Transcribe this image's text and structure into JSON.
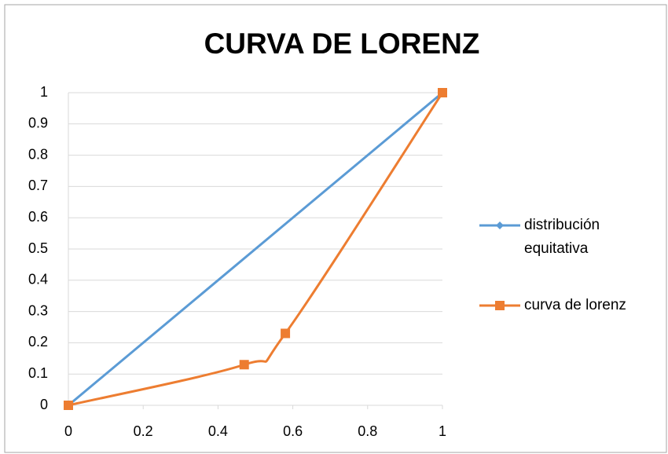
{
  "chart_data": {
    "type": "line",
    "title": "CURVA DE LORENZ",
    "series": [
      {
        "name": "distribución equitativa",
        "color": "#5b9bd5",
        "marker": "diamond",
        "x": [
          0,
          1
        ],
        "values": [
          0,
          1
        ]
      },
      {
        "name": "curva de lorenz",
        "color": "#ed7d31",
        "marker": "square",
        "x": [
          0,
          0.47,
          0.58,
          1
        ],
        "values": [
          0,
          0.13,
          0.23,
          1
        ]
      }
    ],
    "xlim": [
      0,
      1
    ],
    "xticks": [
      0,
      0.2,
      0.4,
      0.6,
      0.8,
      1
    ],
    "ylim": [
      0,
      1
    ],
    "yticks": [
      0,
      0.1,
      0.2,
      0.3,
      0.4,
      0.5,
      0.6,
      0.7,
      0.8,
      0.9,
      1
    ],
    "grid": true,
    "smooth": true,
    "legend": "right"
  }
}
